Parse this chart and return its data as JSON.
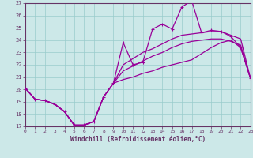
{
  "xlabel": "Windchill (Refroidissement éolien,°C)",
  "bg_color": "#cce8e8",
  "grid_color": "#99cccc",
  "line_color": "#990099",
  "axis_color": "#663366",
  "xlim": [
    0,
    23
  ],
  "ylim": [
    17,
    27
  ],
  "yticks": [
    17,
    18,
    19,
    20,
    21,
    22,
    23,
    24,
    25,
    26,
    27
  ],
  "xticks": [
    0,
    1,
    2,
    3,
    4,
    5,
    6,
    7,
    8,
    9,
    10,
    11,
    12,
    13,
    14,
    15,
    16,
    17,
    18,
    19,
    20,
    21,
    22,
    23
  ],
  "line1_x": [
    0,
    1,
    2,
    3,
    4,
    5,
    6,
    7,
    8,
    9,
    10,
    11,
    12,
    13,
    14,
    15,
    16,
    17,
    18,
    19,
    20,
    21,
    22,
    23
  ],
  "line1_y": [
    20.1,
    19.2,
    19.1,
    18.8,
    18.2,
    17.1,
    17.1,
    17.4,
    19.4,
    20.5,
    23.8,
    22.0,
    22.2,
    24.9,
    25.3,
    24.9,
    26.7,
    27.2,
    24.6,
    24.8,
    24.7,
    24.3,
    23.4,
    20.9
  ],
  "line2_x": [
    0,
    1,
    2,
    3,
    4,
    5,
    6,
    7,
    8,
    9,
    10,
    11,
    12,
    13,
    14,
    15,
    16,
    17,
    18,
    19,
    20,
    21,
    22,
    23
  ],
  "line2_y": [
    20.1,
    19.2,
    19.1,
    18.8,
    18.2,
    17.1,
    17.1,
    17.4,
    19.4,
    20.5,
    22.0,
    22.5,
    23.0,
    23.3,
    23.7,
    24.1,
    24.4,
    24.5,
    24.6,
    24.7,
    24.7,
    24.4,
    24.1,
    20.9
  ],
  "line3_x": [
    0,
    1,
    2,
    3,
    4,
    5,
    6,
    7,
    8,
    9,
    10,
    11,
    12,
    13,
    14,
    15,
    16,
    17,
    18,
    19,
    20,
    21,
    22,
    23
  ],
  "line3_y": [
    20.1,
    19.2,
    19.1,
    18.8,
    18.2,
    17.1,
    17.1,
    17.4,
    19.4,
    20.5,
    21.5,
    21.9,
    22.3,
    22.7,
    23.0,
    23.4,
    23.7,
    23.9,
    24.0,
    24.1,
    24.1,
    23.9,
    23.6,
    20.9
  ],
  "line4_x": [
    0,
    1,
    2,
    3,
    4,
    5,
    6,
    7,
    8,
    9,
    10,
    11,
    12,
    13,
    14,
    15,
    16,
    17,
    18,
    19,
    20,
    21,
    22,
    23
  ],
  "line4_y": [
    20.1,
    19.2,
    19.1,
    18.8,
    18.2,
    17.1,
    17.1,
    17.4,
    19.4,
    20.5,
    20.8,
    21.0,
    21.3,
    21.5,
    21.8,
    22.0,
    22.2,
    22.4,
    22.9,
    23.4,
    23.8,
    24.0,
    23.4,
    20.9
  ]
}
